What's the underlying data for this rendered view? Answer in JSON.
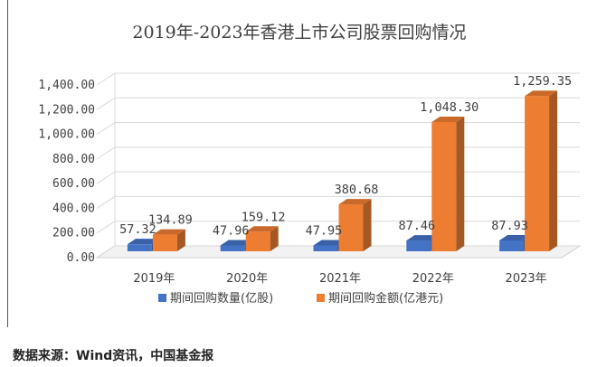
{
  "chart_data": {
    "type": "bar",
    "title": "2019年-2023年香港上市公司股票回购情况",
    "categories": [
      "2019年",
      "2020年",
      "2021年",
      "2022年",
      "2023年"
    ],
    "series": [
      {
        "name": "期间回购数量(亿股)",
        "values": [
          57.32,
          47.96,
          47.95,
          87.46,
          87.93
        ],
        "labels": [
          "57.32",
          "47.96",
          "47.95",
          "87.46",
          "87.93"
        ],
        "color": "#4472C4"
      },
      {
        "name": "期间回购金额(亿港元)",
        "values": [
          134.89,
          159.12,
          380.68,
          1048.3,
          1259.35
        ],
        "labels": [
          "134.89",
          "159.12",
          "380.68",
          "1,048.30",
          "1,259.35"
        ],
        "color": "#ED7D31"
      }
    ],
    "ylim": [
      0,
      1400
    ],
    "yticks": [
      "0.00",
      "200.00",
      "400.00",
      "600.00",
      "800.00",
      "1,000.00",
      "1,200.00",
      "1,400.00"
    ],
    "legend": "bottom",
    "grid": true,
    "style": "3d-column"
  },
  "source_note": "数据来源：Wind资讯，中国基金报"
}
